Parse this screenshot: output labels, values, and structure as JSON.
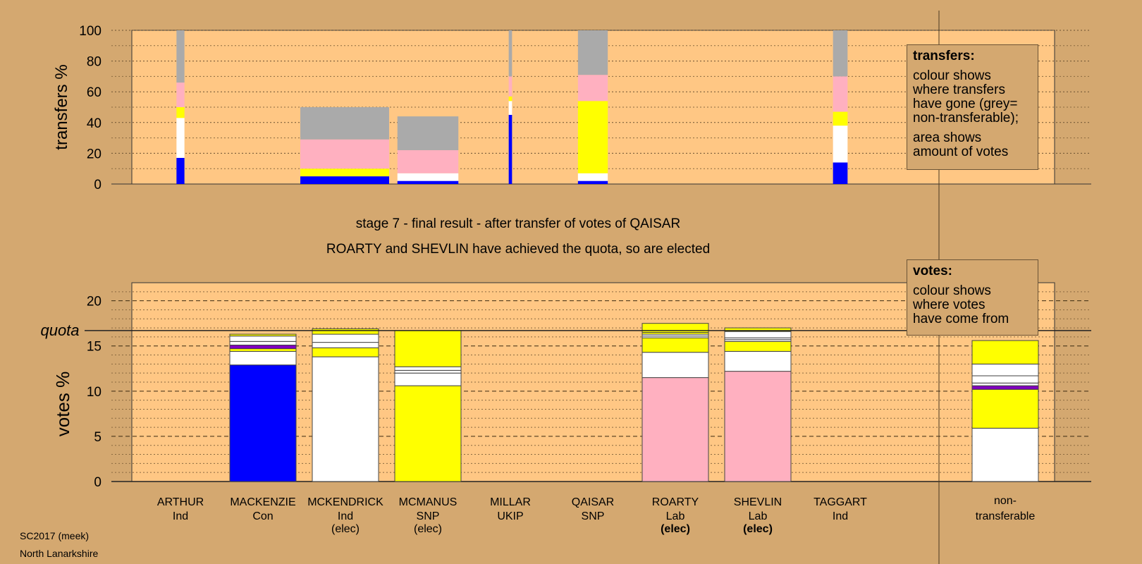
{
  "meta": {
    "election": "SC2017 (meek)",
    "area": "North Lanarkshire"
  },
  "headings": {
    "stage": "stage 7 - final result - after transfer of votes of QAISAR",
    "elected": "ROARTY and SHEVLIN have achieved the quota, so are elected"
  },
  "legends": {
    "transfers": {
      "title": "transfers:",
      "lines": [
        "colour shows",
        "where transfers",
        "have gone (grey=",
        "non-transferable);"
      ],
      "lines2": [
        "area shows",
        "amount of votes"
      ]
    },
    "votes": {
      "title": "votes:",
      "lines": [
        "colour shows",
        "where votes",
        "have come from"
      ]
    }
  },
  "colors": {
    "background": "#D4A870",
    "plot_bg": "#FFC784",
    "con": "#0000FF",
    "ind": "#FFFFFF",
    "snp": "#FFFF00",
    "lab": "#FFB0C0",
    "ukip": "#8000C0",
    "nontransferable": "#AAAAAA"
  },
  "chart_data": [
    {
      "type": "bar",
      "name": "transfers",
      "ylabel": "transfers %",
      "ylim": [
        0,
        100
      ],
      "yticks": [
        0,
        20,
        40,
        60,
        80,
        100
      ],
      "stacking": "stacked",
      "bars": [
        {
          "candidate": "ARTHUR",
          "width": 0.12,
          "segments": [
            {
              "party": "Con",
              "color": "#0000FF",
              "value": 17
            },
            {
              "party": "Ind",
              "color": "#FFFFFF",
              "value": 26
            },
            {
              "party": "SNP",
              "color": "#FFFF00",
              "value": 7
            },
            {
              "party": "Lab",
              "color": "#FFB0C0",
              "value": 16
            },
            {
              "party": "non-transferable",
              "color": "#AAAAAA",
              "value": 34
            }
          ]
        },
        {
          "candidate": "MACKENZIE",
          "width": 1.34,
          "segments": [
            {
              "party": "Con",
              "color": "#0000FF",
              "value": 5
            },
            {
              "party": "SNP",
              "color": "#FFFF00",
              "value": 5
            },
            {
              "party": "Lab",
              "color": "#FFB0C0",
              "value": 19
            },
            {
              "party": "non-transferable",
              "color": "#AAAAAA",
              "value": 21
            }
          ]
        },
        {
          "candidate": "MCKENDRICK",
          "width": 0.92,
          "segments": [
            {
              "party": "Con",
              "color": "#0000FF",
              "value": 2
            },
            {
              "party": "Ind",
              "color": "#FFFFFF",
              "value": 5
            },
            {
              "party": "Lab",
              "color": "#FFB0C0",
              "value": 15
            },
            {
              "party": "non-transferable",
              "color": "#AAAAAA",
              "value": 22
            }
          ]
        },
        {
          "candidate": "MILLAR",
          "width": 0.05,
          "segments": [
            {
              "party": "Con",
              "color": "#0000FF",
              "value": 45
            },
            {
              "party": "Ind",
              "color": "#FFFFFF",
              "value": 9
            },
            {
              "party": "SNP",
              "color": "#FFFF00",
              "value": 3
            },
            {
              "party": "Lab",
              "color": "#FFB0C0",
              "value": 13
            },
            {
              "party": "non-transferable",
              "color": "#AAAAAA",
              "value": 30
            }
          ]
        },
        {
          "candidate": "QAISAR",
          "width": 0.45,
          "segments": [
            {
              "party": "Con",
              "color": "#0000FF",
              "value": 2
            },
            {
              "party": "Ind",
              "color": "#FFFFFF",
              "value": 5
            },
            {
              "party": "SNP",
              "color": "#FFFF00",
              "value": 47
            },
            {
              "party": "Lab",
              "color": "#FFB0C0",
              "value": 17
            },
            {
              "party": "non-transferable",
              "color": "#AAAAAA",
              "value": 29
            }
          ]
        },
        {
          "candidate": "TAGGART",
          "width": 0.22,
          "segments": [
            {
              "party": "Con",
              "color": "#0000FF",
              "value": 14
            },
            {
              "party": "Ind",
              "color": "#FFFFFF",
              "value": 24
            },
            {
              "party": "SNP",
              "color": "#FFFF00",
              "value": 9
            },
            {
              "party": "Lab",
              "color": "#FFB0C0",
              "value": 23
            },
            {
              "party": "non-transferable",
              "color": "#AAAAAA",
              "value": 30
            }
          ]
        }
      ]
    },
    {
      "type": "bar",
      "name": "votes",
      "ylabel": "votes %",
      "ylim": [
        0,
        22
      ],
      "yticks": [
        0,
        5,
        10,
        15,
        20
      ],
      "quota": 16.7,
      "quota_label": "quota",
      "stacking": "stacked",
      "categories": [
        "ARTHUR",
        "MACKENZIE",
        "MCKENDRICK",
        "MCMANUS",
        "MILLAR",
        "QAISAR",
        "ROARTY",
        "SHEVLIN",
        "TAGGART",
        "non-transferable"
      ],
      "bars": [
        {
          "name": "ARTHUR",
          "party": "Ind",
          "elected": false,
          "segments": []
        },
        {
          "name": "MACKENZIE",
          "party": "Con",
          "elected": false,
          "segments": [
            {
              "color": "#0000FF",
              "value": 12.9
            },
            {
              "color": "#FFFFFF",
              "value": 1.5
            },
            {
              "color": "#FFFF00",
              "value": 0.3
            },
            {
              "color": "#8000C0",
              "value": 0.4
            },
            {
              "color": "#FFFFFF",
              "value": 0.4
            },
            {
              "color": "#FFFFFF",
              "value": 0.6
            },
            {
              "color": "#FFFF00",
              "value": 0.2
            }
          ]
        },
        {
          "name": "MCKENDRICK",
          "party": "Ind",
          "elected": true,
          "segments": [
            {
              "color": "#FFFFFF",
              "value": 13.8
            },
            {
              "color": "#FFFF00",
              "value": 1.0
            },
            {
              "color": "#FFFFFF",
              "value": 0.6
            },
            {
              "color": "#FFFFFF",
              "value": 0.9
            },
            {
              "color": "#FFFF00",
              "value": 0.6
            }
          ]
        },
        {
          "name": "MCMANUS",
          "party": "SNP",
          "elected": true,
          "segments": [
            {
              "color": "#FFFF00",
              "value": 10.6
            },
            {
              "color": "#FFFFFF",
              "value": 1.4
            },
            {
              "color": "#FFFFFF",
              "value": 0.3
            },
            {
              "color": "#FFFFFF",
              "value": 0.4
            },
            {
              "color": "#FFFF00",
              "value": 4.0
            }
          ]
        },
        {
          "name": "MILLAR",
          "party": "UKIP",
          "elected": false,
          "segments": []
        },
        {
          "name": "QAISAR",
          "party": "SNP",
          "elected": false,
          "segments": []
        },
        {
          "name": "ROARTY",
          "party": "Lab",
          "elected": true,
          "segments": [
            {
              "color": "#FFB0C0",
              "value": 11.5
            },
            {
              "color": "#FFFFFF",
              "value": 2.8
            },
            {
              "color": "#FFFF00",
              "value": 1.6
            },
            {
              "color": "#FFFFFF",
              "value": 0.2
            },
            {
              "color": "#FFFFFF",
              "value": 0.2
            },
            {
              "color": "#FFFF00",
              "value": 0.2
            },
            {
              "color": "#FFFF00",
              "value": 1.0
            }
          ]
        },
        {
          "name": "SHEVLIN",
          "party": "Lab",
          "elected": true,
          "segments": [
            {
              "color": "#FFB0C0",
              "value": 12.2
            },
            {
              "color": "#FFFFFF",
              "value": 2.2
            },
            {
              "color": "#FFFF00",
              "value": 1.1
            },
            {
              "color": "#FFFFFF",
              "value": 0.2
            },
            {
              "color": "#FFFFFF",
              "value": 0.2
            },
            {
              "color": "#FFFFFF",
              "value": 0.7
            },
            {
              "color": "#FFFF00",
              "value": 0.4
            }
          ]
        },
        {
          "name": "TAGGART",
          "party": "Ind",
          "elected": false,
          "segments": []
        },
        {
          "name": "non-transferable",
          "party": "transferable",
          "elected": false,
          "segments": [
            {
              "color": "#FFFFFF",
              "value": 5.9
            },
            {
              "color": "#FFFF00",
              "value": 4.3
            },
            {
              "color": "#8000C0",
              "value": 0.4
            },
            {
              "color": "#FFFFFF",
              "value": 0.3
            },
            {
              "color": "#FFFFFF",
              "value": 0.8
            },
            {
              "color": "#FFFFFF",
              "value": 1.3
            },
            {
              "color": "#FFFF00",
              "value": 2.6
            }
          ]
        }
      ]
    }
  ]
}
